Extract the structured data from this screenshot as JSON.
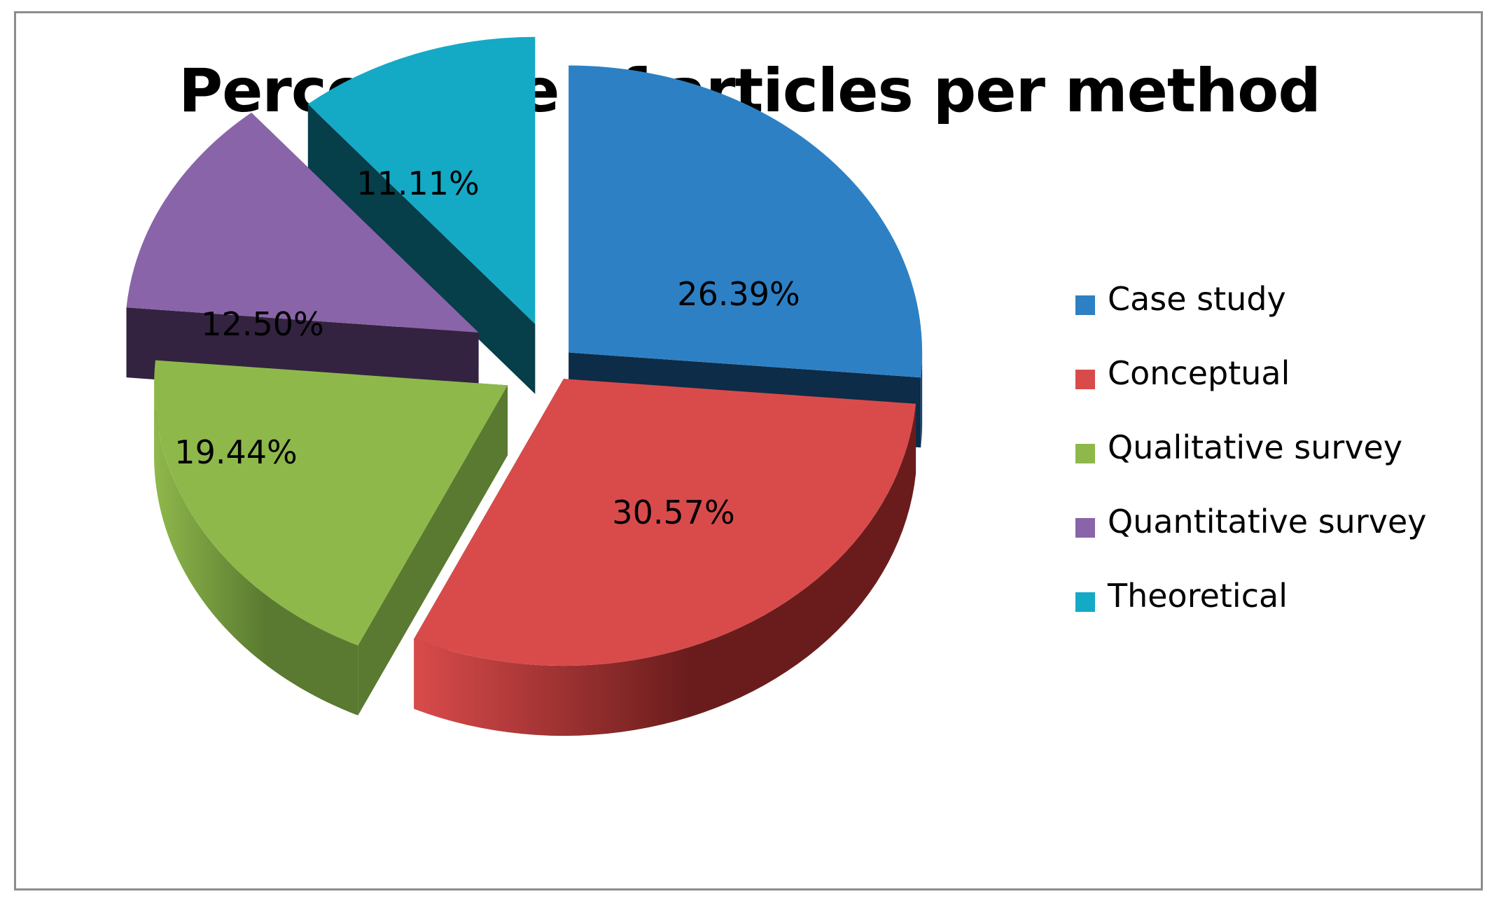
{
  "chart_data": {
    "type": "pie",
    "title": "Percentage of articles per method",
    "style": "3d-exploded",
    "legend_position": "right",
    "categories": [
      "Case study",
      "Conceptual",
      "Qualitative survey",
      "Quantitative survey",
      "Theoretical"
    ],
    "values": [
      26.39,
      30.57,
      19.44,
      12.5,
      11.11
    ],
    "labels": [
      "26.39%",
      "30.57%",
      "19.44%",
      "12.50%",
      "11.11%"
    ],
    "colors": [
      "#2e80c4",
      "#d94b4b",
      "#8fb84b",
      "#8a64a8",
      "#14aac6"
    ],
    "side_colors": [
      "#0c2c48",
      "#6a1c1c",
      "#597a30",
      "#332340",
      "#063e4a"
    ]
  }
}
